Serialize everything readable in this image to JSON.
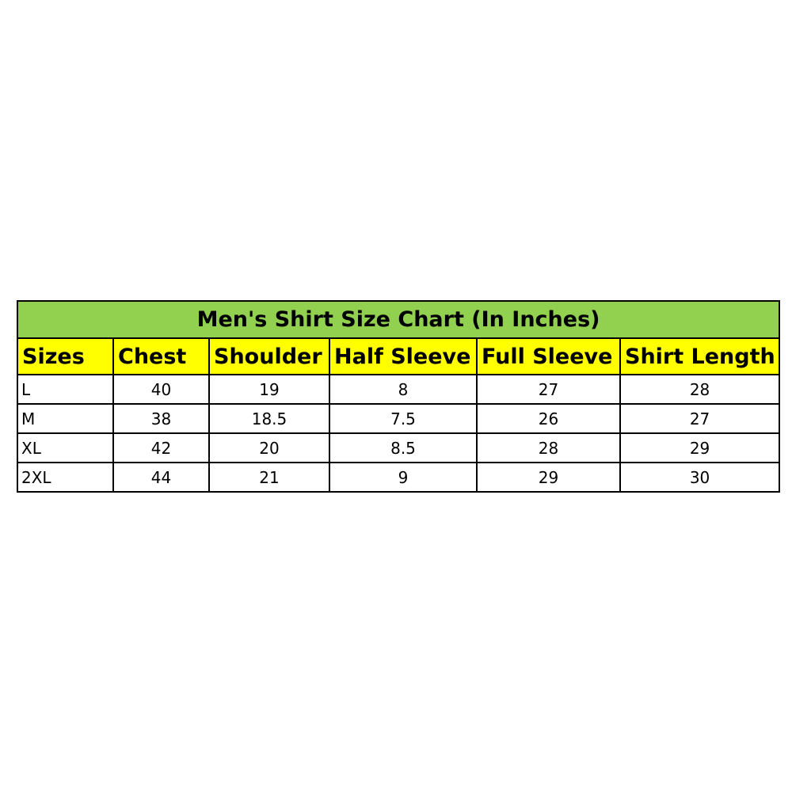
{
  "colors": {
    "title_bg": "#92d050",
    "header_bg": "#ffff00",
    "border": "#000000"
  },
  "chart_data": {
    "type": "table",
    "title": "Men's Shirt Size Chart (In Inches)",
    "columns": [
      "Sizes",
      "Chest",
      "Shoulder",
      "Half Sleeve",
      "Full Sleeve",
      "Shirt Length"
    ],
    "rows": [
      [
        "L",
        "40",
        "19",
        "8",
        "27",
        "28"
      ],
      [
        "M",
        "38",
        "18.5",
        "7.5",
        "26",
        "27"
      ],
      [
        "XL",
        "42",
        "20",
        "8.5",
        "28",
        "29"
      ],
      [
        "2XL",
        "44",
        "21",
        "9",
        "29",
        "30"
      ]
    ]
  }
}
